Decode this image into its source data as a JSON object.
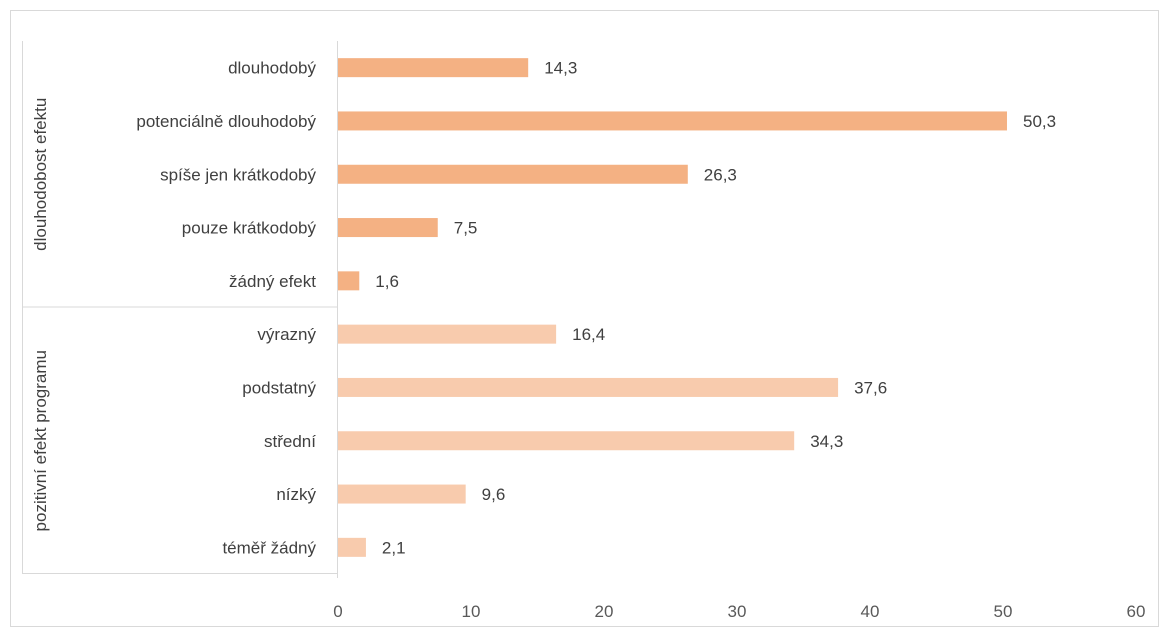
{
  "chart_data": {
    "type": "bar",
    "orientation": "horizontal",
    "xlim": [
      0,
      60
    ],
    "x_ticks": [
      "0",
      "10",
      "20",
      "30",
      "40",
      "50",
      "60"
    ],
    "grid": false,
    "groups": [
      {
        "name": "dlouhodobost efektu",
        "color": "#F4B183",
        "items": [
          {
            "label": "dlouhodobý",
            "value": 14.3,
            "value_label": "14,3"
          },
          {
            "label": "potenciálně dlouhodobý",
            "value": 50.3,
            "value_label": "50,3"
          },
          {
            "label": "spíše jen krátkodobý",
            "value": 26.3,
            "value_label": "26,3"
          },
          {
            "label": "pouze krátkodobý",
            "value": 7.5,
            "value_label": "7,5"
          },
          {
            "label": "žádný efekt",
            "value": 1.6,
            "value_label": "1,6"
          }
        ]
      },
      {
        "name": "pozitivní efekt programu",
        "color": "#F8CBAD",
        "items": [
          {
            "label": "výrazný",
            "value": 16.4,
            "value_label": "16,4"
          },
          {
            "label": "podstatný",
            "value": 37.6,
            "value_label": "37,6"
          },
          {
            "label": "střední",
            "value": 34.3,
            "value_label": "34,3"
          },
          {
            "label": "nízký",
            "value": 9.6,
            "value_label": "9,6"
          },
          {
            "label": "téměř žádný",
            "value": 2.1,
            "value_label": "2,1"
          }
        ]
      }
    ]
  }
}
